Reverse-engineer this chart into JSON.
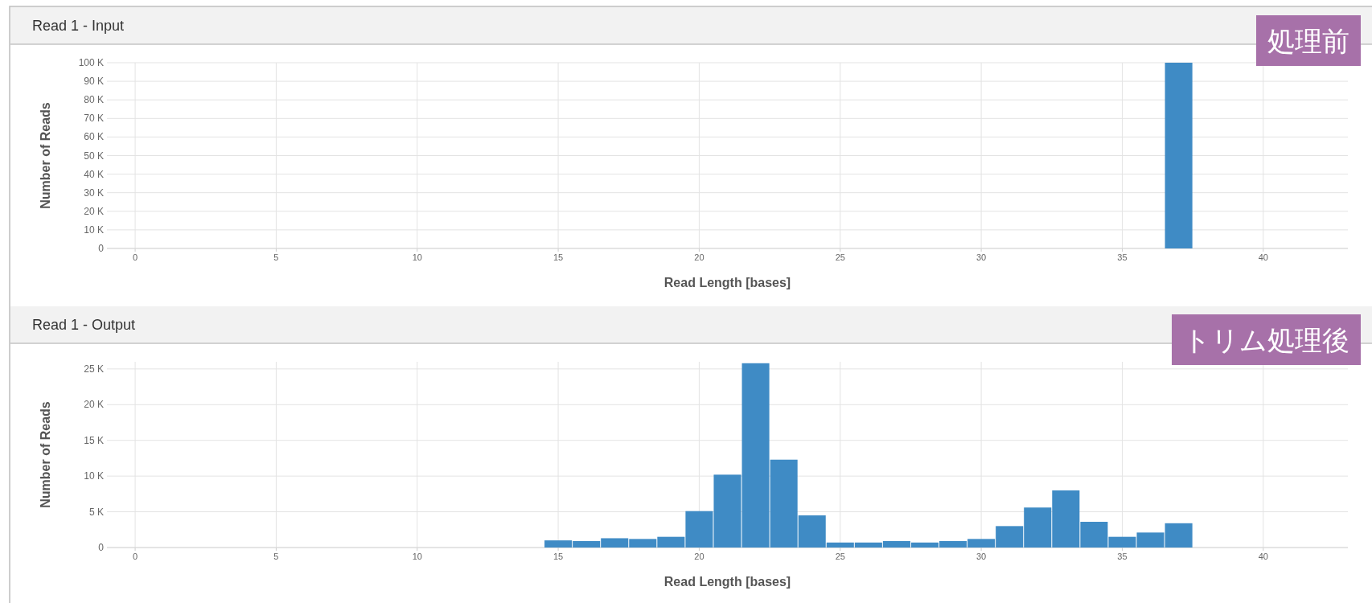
{
  "chart_data": [
    {
      "type": "histogram",
      "title": "Read 1 - Input",
      "xlabel": "Read Length [bases]",
      "ylabel": "Number of Reads",
      "annotations": [
        "処理前"
      ],
      "bins": [
        36.5,
        37.5
      ],
      "values": [
        100000
      ],
      "color": "#3f8bc5",
      "xlim": [
        -1,
        43
      ],
      "ylim": [
        0,
        100000
      ],
      "xticks": [
        0,
        5,
        10,
        15,
        20,
        25,
        30,
        35,
        40
      ],
      "yticks": [
        {
          "value": 0,
          "label": "0"
        },
        {
          "value": 10000,
          "label": "10 K"
        },
        {
          "value": 20000,
          "label": "20 K"
        },
        {
          "value": 30000,
          "label": "30 K"
        },
        {
          "value": 40000,
          "label": "40 K"
        },
        {
          "value": 50000,
          "label": "50 K"
        },
        {
          "value": 60000,
          "label": "60 K"
        },
        {
          "value": 70000,
          "label": "70 K"
        },
        {
          "value": 80000,
          "label": "80 K"
        },
        {
          "value": 90000,
          "label": "90 K"
        },
        {
          "value": 100000,
          "label": "100 K"
        }
      ],
      "grid": true
    },
    {
      "type": "histogram",
      "title": "Read 1 - Output",
      "xlabel": "Read Length [bases]",
      "ylabel": "Number of Reads",
      "annotations": [
        "トリム処理後"
      ],
      "bins": [
        14.5,
        15.5,
        16.5,
        17.5,
        18.5,
        19.5,
        20.5,
        21.5,
        22.5,
        23.5,
        24.5,
        25.5,
        26.5,
        27.5,
        28.5,
        29.5,
        30.5,
        31.5,
        32.5,
        33.5,
        34.5,
        35.5,
        36.5,
        37.5
      ],
      "values": [
        1000,
        900,
        1300,
        1200,
        1500,
        5100,
        10200,
        25800,
        12300,
        4500,
        700,
        700,
        900,
        700,
        900,
        1200,
        3000,
        5600,
        8000,
        3600,
        1500,
        2100,
        3400
      ],
      "color": "#3f8bc5",
      "xlim": [
        -1,
        43
      ],
      "ylim": [
        0,
        26000
      ],
      "xticks": [
        0,
        5,
        10,
        15,
        20,
        25,
        30,
        35,
        40
      ],
      "yticks": [
        {
          "value": 0,
          "label": "0"
        },
        {
          "value": 5000,
          "label": "5 K"
        },
        {
          "value": 10000,
          "label": "10 K"
        },
        {
          "value": 15000,
          "label": "15 K"
        },
        {
          "value": 20000,
          "label": "20 K"
        },
        {
          "value": 25000,
          "label": "25 K"
        }
      ],
      "grid": true
    }
  ]
}
